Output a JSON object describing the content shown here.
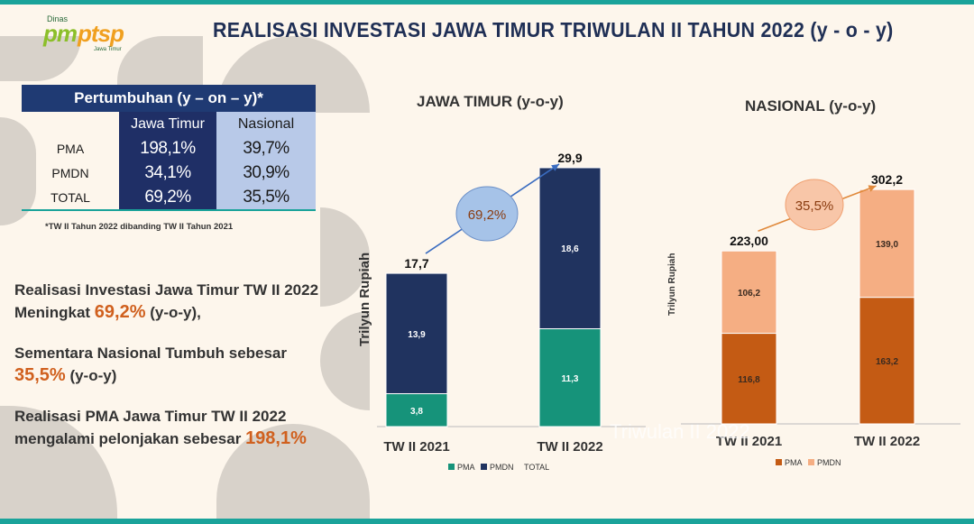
{
  "logo": {
    "top": "Dinas",
    "pm": "pm",
    "ptsp": "ptsp",
    "sub": "Jawa Timur"
  },
  "title": "REALISASI INVESTASI JAWA TIMUR  TRIWULAN II TAHUN 2022  (y - o - y)",
  "growth_table": {
    "header": "Pertumbuhan (y – on – y)*",
    "col_jatim": "Jawa Timur",
    "col_nasional": "Nasional",
    "rows": [
      {
        "label": "PMA",
        "jatim": "198,1%",
        "nasional": "39,7%"
      },
      {
        "label": "PMDN",
        "jatim": "34,1%",
        "nasional": "30,9%"
      },
      {
        "label": "TOTAL",
        "jatim": "69,2%",
        "nasional": "35,5%"
      }
    ],
    "note": "*TW II Tahun 2022 dibanding TW II Tahun 2021"
  },
  "text": {
    "p1a": "Realisasi Investasi Jawa Timur TW II 2022",
    "p1b": "Meningkat ",
    "p1h": "69,2%",
    "p1c": " (y-o-y),",
    "p2a": "Sementara Nasional Tumbuh sebesar",
    "p2h": "35,5%",
    "p2c": " (y-o-y)",
    "p3a": "Realisasi PMA Jawa Timur TW II 2022",
    "p3b": "mengalami pelonjakan sebesar ",
    "p3h": "198,1%"
  },
  "watermark": "Triwulan II 2022",
  "chart_data": [
    {
      "type": "bar",
      "stacked": true,
      "title": "JAWA TIMUR (y-o-y)",
      "ylabel": "Trilyun Rupiah",
      "categories": [
        "TW II 2021",
        "TW II 2022"
      ],
      "series": [
        {
          "name": "PMA",
          "values": [
            3.8,
            11.3
          ],
          "labels": [
            "3,8",
            "11,3"
          ],
          "color": "#16937a"
        },
        {
          "name": "PMDN",
          "values": [
            13.9,
            18.6
          ],
          "labels": [
            "13,9",
            "18,6"
          ],
          "color": "#20335f"
        }
      ],
      "totals": [
        17.7,
        29.9
      ],
      "total_labels": [
        "17,7",
        "29,9"
      ],
      "growth_label": "69,2%",
      "legend": [
        "PMA",
        "PMDN",
        "TOTAL"
      ],
      "legend_position": "bottom"
    },
    {
      "type": "bar",
      "stacked": true,
      "title": "NASIONAL (y-o-y)",
      "ylabel": "Trilyun Rupiah",
      "categories": [
        "TW II 2021",
        "TW II 2022"
      ],
      "series": [
        {
          "name": "PMA",
          "values": [
            116.8,
            163.2
          ],
          "labels": [
            "116,8",
            "163,2"
          ],
          "color": "#c45b14"
        },
        {
          "name": "PMDN",
          "values": [
            106.2,
            139.0
          ],
          "labels": [
            "106,2",
            "139,0"
          ],
          "color": "#f5ae83"
        }
      ],
      "totals": [
        223.0,
        302.2
      ],
      "total_labels": [
        "223,00",
        "302,2"
      ],
      "growth_label": "35,5%",
      "legend": [
        "PMA",
        "PMDN"
      ],
      "legend_position": "bottom"
    }
  ]
}
